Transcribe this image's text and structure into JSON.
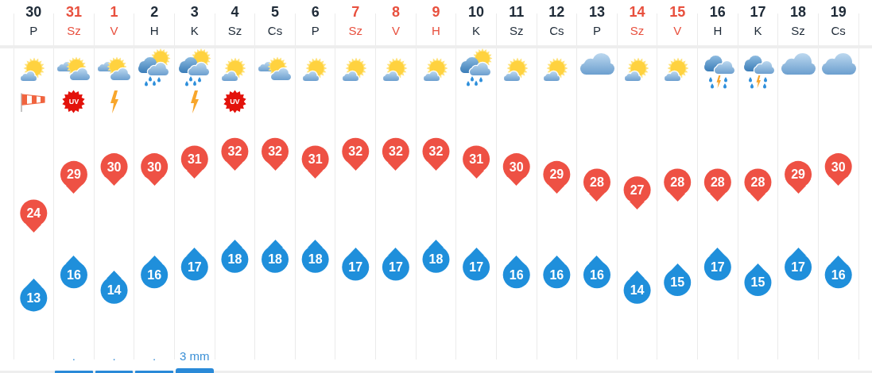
{
  "chart_data": {
    "type": "scatter",
    "categories": [
      "30\nP",
      "31\nSz",
      "1\nV",
      "2\nH",
      "3\nK",
      "4\nSz",
      "5\nCs",
      "6\nP",
      "7\nSz",
      "8\nV",
      "9\nH",
      "10\nK",
      "11\nSz",
      "12\nCs",
      "13\nP",
      "14\nSz",
      "15\nV",
      "16\nH",
      "17\nK",
      "18\nSz",
      "19\nCs"
    ],
    "series": [
      {
        "color": "#ee5144",
        "values": [
          24,
          29,
          30,
          30,
          31,
          32,
          32,
          31,
          32,
          32,
          32,
          31,
          30,
          29,
          28,
          27,
          28,
          28,
          28,
          29,
          30
        ]
      },
      {
        "color": "#1f8fdb",
        "values": [
          13,
          16,
          14,
          16,
          17,
          18,
          18,
          18,
          17,
          17,
          18,
          17,
          16,
          16,
          16,
          14,
          15,
          17,
          15,
          17,
          16
        ]
      }
    ],
    "marker": "circle",
    "data_labels": true,
    "grid": "x",
    "tick_labels": "x",
    "annotations": [
      ".",
      ".",
      ".",
      "3 mm",
      "UV",
      "UV"
    ]
  }
}
